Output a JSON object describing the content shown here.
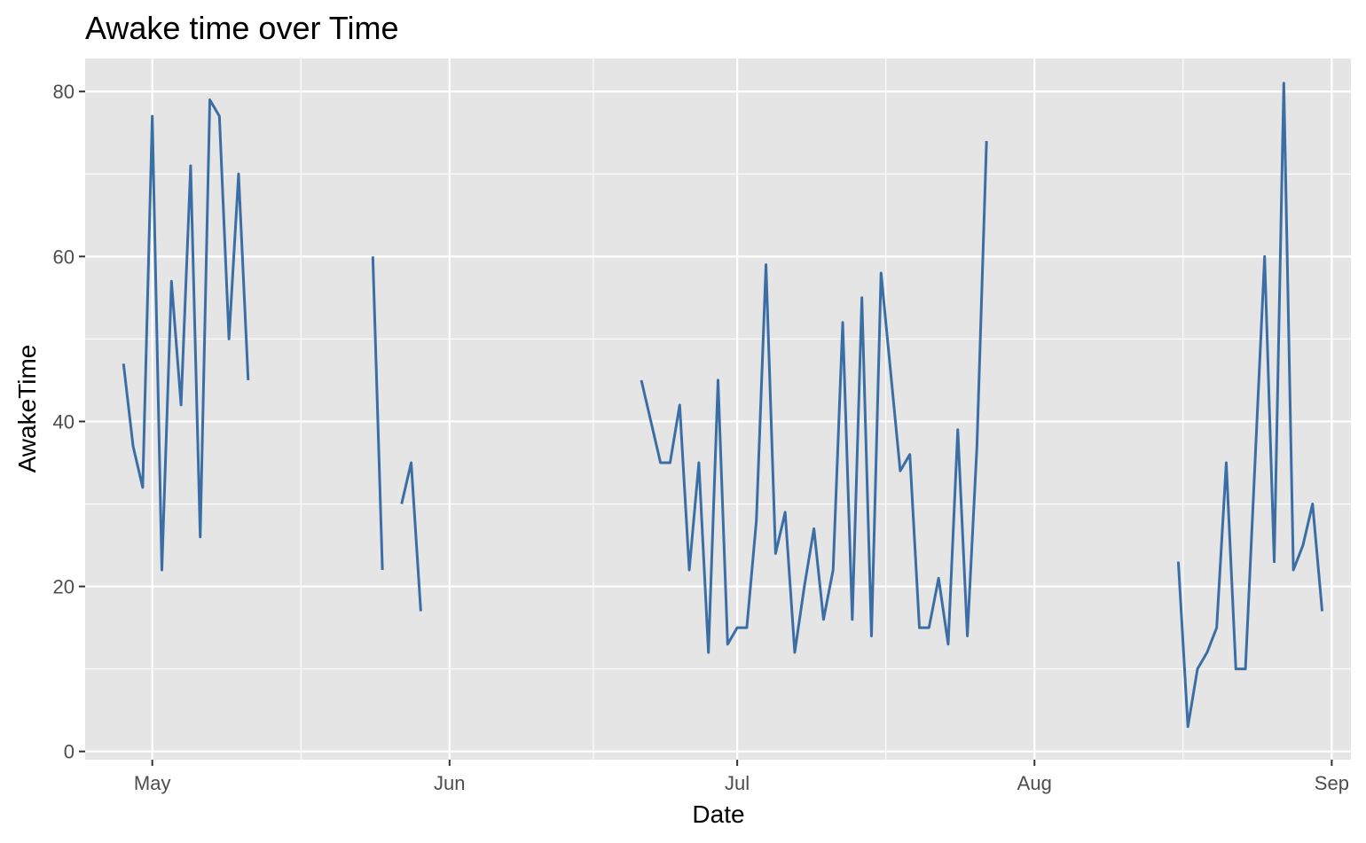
{
  "chart_data": {
    "type": "line",
    "title": "Awake time over Time",
    "xlabel": "Date",
    "ylabel": "AwakeTime",
    "x_axis_type": "date",
    "xlim": [
      "2023-04-24",
      "2023-09-03"
    ],
    "ylim": [
      -1,
      84
    ],
    "y_ticks": [
      0,
      20,
      40,
      60,
      80
    ],
    "x_ticks": [
      {
        "date": "2023-05-01",
        "label": "May"
      },
      {
        "date": "2023-06-01",
        "label": "Jun"
      },
      {
        "date": "2023-07-01",
        "label": "Jul"
      },
      {
        "date": "2023-08-01",
        "label": "Aug"
      },
      {
        "date": "2023-09-01",
        "label": "Sep"
      }
    ],
    "grid": true,
    "panel_background": "#E5E5E5",
    "series": [
      {
        "color": "#3A6EA5",
        "segments": [
          [
            [
              "2023-04-28",
              47
            ],
            [
              "2023-04-29",
              37
            ],
            [
              "2023-04-30",
              32
            ],
            [
              "2023-05-01",
              77
            ],
            [
              "2023-05-02",
              22
            ],
            [
              "2023-05-03",
              57
            ],
            [
              "2023-05-04",
              42
            ],
            [
              "2023-05-05",
              71
            ],
            [
              "2023-05-06",
              26
            ],
            [
              "2023-05-07",
              79
            ],
            [
              "2023-05-08",
              77
            ],
            [
              "2023-05-09",
              50
            ],
            [
              "2023-05-10",
              70
            ],
            [
              "2023-05-11",
              45
            ]
          ],
          [
            [
              "2023-05-24",
              60
            ],
            [
              "2023-05-25",
              22
            ]
          ],
          [
            [
              "2023-05-27",
              30
            ],
            [
              "2023-05-28",
              35
            ],
            [
              "2023-05-29",
              17
            ]
          ],
          [
            [
              "2023-06-21",
              45
            ],
            [
              "2023-06-22",
              40
            ],
            [
              "2023-06-23",
              35
            ],
            [
              "2023-06-24",
              35
            ],
            [
              "2023-06-25",
              42
            ],
            [
              "2023-06-26",
              22
            ],
            [
              "2023-06-27",
              35
            ],
            [
              "2023-06-28",
              12
            ],
            [
              "2023-06-29",
              45
            ],
            [
              "2023-06-30",
              13
            ],
            [
              "2023-07-01",
              15
            ],
            [
              "2023-07-02",
              15
            ],
            [
              "2023-07-03",
              28
            ],
            [
              "2023-07-04",
              59
            ],
            [
              "2023-07-05",
              24
            ],
            [
              "2023-07-06",
              29
            ],
            [
              "2023-07-07",
              12
            ],
            [
              "2023-07-08",
              20
            ],
            [
              "2023-07-09",
              27
            ],
            [
              "2023-07-10",
              16
            ],
            [
              "2023-07-11",
              22
            ],
            [
              "2023-07-12",
              52
            ],
            [
              "2023-07-13",
              16
            ],
            [
              "2023-07-14",
              55
            ],
            [
              "2023-07-15",
              14
            ],
            [
              "2023-07-16",
              58
            ],
            [
              "2023-07-17",
              46
            ],
            [
              "2023-07-18",
              34
            ],
            [
              "2023-07-19",
              36
            ],
            [
              "2023-07-20",
              15
            ],
            [
              "2023-07-21",
              15
            ],
            [
              "2023-07-22",
              21
            ],
            [
              "2023-07-23",
              13
            ],
            [
              "2023-07-24",
              39
            ],
            [
              "2023-07-25",
              14
            ],
            [
              "2023-07-26",
              37
            ],
            [
              "2023-07-27",
              74
            ]
          ],
          [
            [
              "2023-08-16",
              23
            ],
            [
              "2023-08-17",
              3
            ],
            [
              "2023-08-18",
              10
            ],
            [
              "2023-08-19",
              12
            ],
            [
              "2023-08-20",
              15
            ],
            [
              "2023-08-21",
              35
            ],
            [
              "2023-08-22",
              10
            ],
            [
              "2023-08-23",
              10
            ],
            [
              "2023-08-24",
              35
            ],
            [
              "2023-08-25",
              60
            ],
            [
              "2023-08-26",
              23
            ],
            [
              "2023-08-27",
              81
            ],
            [
              "2023-08-28",
              22
            ],
            [
              "2023-08-29",
              25
            ],
            [
              "2023-08-30",
              30
            ],
            [
              "2023-08-31",
              17
            ]
          ]
        ]
      }
    ]
  }
}
